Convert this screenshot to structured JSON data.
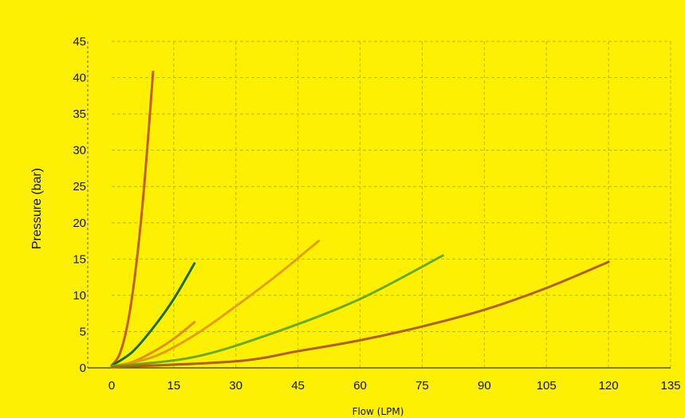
{
  "chart_data": {
    "type": "line",
    "title": "",
    "xlabel": "Flow (LPM)",
    "ylabel": "Pressure (bar)",
    "xlim": [
      0,
      135
    ],
    "ylim": [
      0,
      45
    ],
    "x_ticks": [
      0,
      15,
      30,
      45,
      60,
      75,
      90,
      105,
      120,
      135
    ],
    "y_ticks": [
      0,
      5,
      10,
      15,
      20,
      25,
      30,
      35,
      40,
      45
    ],
    "grid": true,
    "legend": "none",
    "colors": {
      "background": "#fdf003",
      "grid": "#bdb400",
      "axis": "#333333"
    },
    "series": [
      {
        "color": "#c06010",
        "points": [
          [
            0,
            0.3
          ],
          [
            2,
            2.0
          ],
          [
            4,
            6.5
          ],
          [
            6,
            14.5
          ],
          [
            8,
            26.0
          ],
          [
            10,
            40.8
          ]
        ]
      },
      {
        "color": "#1f6a1f",
        "points": [
          [
            0,
            0.3
          ],
          [
            5,
            2.2
          ],
          [
            10,
            5.5
          ],
          [
            15,
            9.5
          ],
          [
            20,
            14.4
          ]
        ]
      },
      {
        "color": "#e09018",
        "points": [
          [
            0,
            0.2
          ],
          [
            5,
            0.8
          ],
          [
            10,
            2.2
          ],
          [
            15,
            4.0
          ],
          [
            20,
            6.3
          ]
        ]
      },
      {
        "color": "#e0a010",
        "points": [
          [
            0,
            0.2
          ],
          [
            10,
            1.5
          ],
          [
            20,
            4.5
          ],
          [
            30,
            8.5
          ],
          [
            40,
            12.8
          ],
          [
            50,
            17.5
          ]
        ]
      },
      {
        "color": "#6aaa18",
        "points": [
          [
            0,
            0.2
          ],
          [
            20,
            1.5
          ],
          [
            40,
            5.0
          ],
          [
            60,
            9.5
          ],
          [
            80,
            15.5
          ]
        ]
      },
      {
        "color": "#b06010",
        "points": [
          [
            0,
            0.1
          ],
          [
            30,
            0.9
          ],
          [
            45,
            2.3
          ],
          [
            60,
            3.8
          ],
          [
            75,
            5.7
          ],
          [
            90,
            8.0
          ],
          [
            105,
            11.0
          ],
          [
            120,
            14.6
          ]
        ]
      }
    ]
  }
}
